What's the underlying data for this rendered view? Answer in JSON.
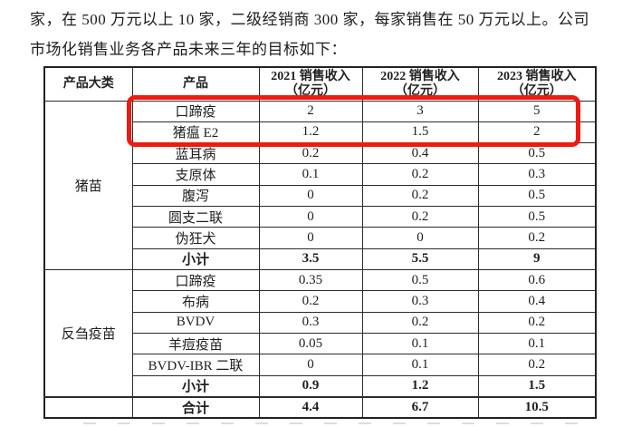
{
  "intro": {
    "line1": "家，在 500 万元以上 10 家，二级经销商 300 家，每家销售在 50 万元以上。公司",
    "line2": "市场化销售业务各产品未来三年的目标如下："
  },
  "table": {
    "headers": {
      "category": "产品大类",
      "product": "产品",
      "y2021": {
        "title": "2021 销售收入",
        "unit": "（亿元）"
      },
      "y2022": {
        "title": "2022 销售收入",
        "unit": "（亿元）"
      },
      "y2023": {
        "title": "2023 销售收入",
        "unit": "（亿元）"
      }
    },
    "rows": [
      {
        "category": "猪苗",
        "category_rowspan": 8,
        "product": "口蹄疫",
        "v2021": "2",
        "v2022": "3",
        "v2023": "5",
        "highlight": true
      },
      {
        "product": "猪瘟 E2",
        "v2021": "1.2",
        "v2022": "1.5",
        "v2023": "2",
        "highlight": true
      },
      {
        "product": "蓝耳病",
        "v2021": "0.2",
        "v2022": "0.4",
        "v2023": "0.5"
      },
      {
        "product": "支原体",
        "v2021": "0.1",
        "v2022": "0.2",
        "v2023": "0.3"
      },
      {
        "product": "腹泻",
        "v2021": "0",
        "v2022": "0.2",
        "v2023": "0.5"
      },
      {
        "product": "圆支二联",
        "v2021": "0",
        "v2022": "0.2",
        "v2023": "0.5"
      },
      {
        "product": "伪狂犬",
        "v2021": "0",
        "v2022": "0",
        "v2023": "0.2"
      },
      {
        "product": "小计",
        "v2021": "3.5",
        "v2022": "5.5",
        "v2023": "9",
        "bold": true
      },
      {
        "category": "反刍疫苗",
        "category_rowspan": 6,
        "product": "口蹄疫",
        "v2021": "0.35",
        "v2022": "0.5",
        "v2023": "0.6"
      },
      {
        "product": "布病",
        "v2021": "0.2",
        "v2022": "0.3",
        "v2023": "0.4"
      },
      {
        "product": "BVDV",
        "v2021": "0.3",
        "v2022": "0.2",
        "v2023": "0.2"
      },
      {
        "product": "羊痘疫苗",
        "v2021": "0.05",
        "v2022": "0.1",
        "v2023": "0.1"
      },
      {
        "product": "BVDV-IBR 二联",
        "v2021": "0",
        "v2022": "0.1",
        "v2023": "0.2"
      },
      {
        "product": "小计",
        "v2021": "0.9",
        "v2022": "1.2",
        "v2023": "1.5",
        "bold": true
      },
      {
        "category": "",
        "category_rowspan": 1,
        "product": "合计",
        "v2021": "4.4",
        "v2022": "6.7",
        "v2023": "10.5",
        "bold": true,
        "total": true
      }
    ]
  },
  "annotation": {
    "highlight_color": "#ed1b12",
    "highlighted_products": [
      "口蹄疫",
      "猪瘟 E2"
    ]
  }
}
